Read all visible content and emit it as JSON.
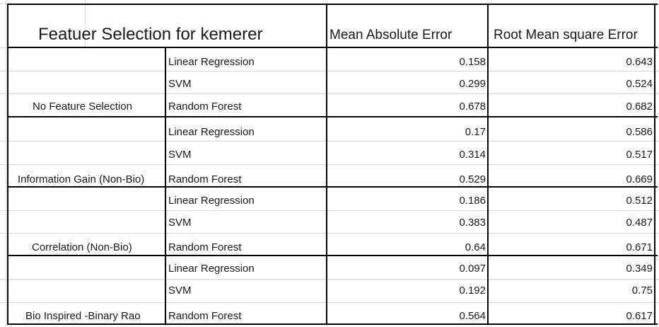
{
  "table": {
    "title": "Featuer Selection for kemerer",
    "col_mae": "Mean Absolute Error",
    "col_rmse": "Root Mean square Error",
    "groups": [
      {
        "name": "No Feature Selection",
        "rows": [
          {
            "model": "Linear Regression",
            "mae": "0.158",
            "rmse": "0.643"
          },
          {
            "model": "SVM",
            "mae": "0.299",
            "rmse": "0.524"
          },
          {
            "model": "Random Forest",
            "mae": "0.678",
            "rmse": "0.682"
          }
        ]
      },
      {
        "name": "Information Gain (Non-Bio)",
        "rows": [
          {
            "model": "Linear Regression",
            "mae": "0.17",
            "rmse": "0.586"
          },
          {
            "model": "SVM",
            "mae": "0.314",
            "rmse": "0.517"
          },
          {
            "model": "Random Forest",
            "mae": "0.529",
            "rmse": "0.669"
          }
        ]
      },
      {
        "name": "Correlation (Non-Bio)",
        "rows": [
          {
            "model": "Linear Regression",
            "mae": "0.186",
            "rmse": "0.512"
          },
          {
            "model": "SVM",
            "mae": "0.383",
            "rmse": "0.487"
          },
          {
            "model": "Random Forest",
            "mae": "0.64",
            "rmse": "0.671"
          }
        ]
      },
      {
        "name": "Bio Inspired -Binary Rao",
        "rows": [
          {
            "model": "Linear Regression",
            "mae": "0.097",
            "rmse": "0.349"
          },
          {
            "model": "SVM",
            "mae": "0.192",
            "rmse": "0.75"
          },
          {
            "model": "Random Forest",
            "mae": "0.564",
            "rmse": "0.617"
          }
        ]
      }
    ]
  }
}
